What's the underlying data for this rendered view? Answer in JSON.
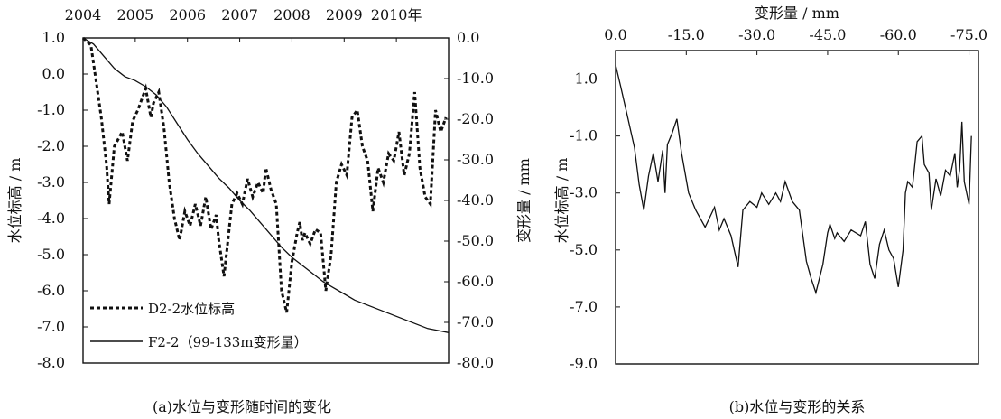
{
  "chart_data": [
    {
      "id": "a",
      "type": "line",
      "caption": "(a)水位与变形随时间的变化",
      "x_axis": {
        "ticks": [
          "2004",
          "2005",
          "2006",
          "2007",
          "2008",
          "2009",
          "2010年"
        ],
        "range": [
          2004,
          2011
        ]
      },
      "y_left": {
        "label": "水位标高 / m",
        "range": [
          -8.0,
          1.0
        ],
        "ticks": [
          "1.0",
          "0.0",
          "-1.0",
          "-2.0",
          "-3.0",
          "-4.0",
          "-5.0",
          "-6.0",
          "-7.0",
          "-8.0"
        ]
      },
      "y_right": {
        "label": "变形量 / mm",
        "range": [
          -80.0,
          0.0
        ],
        "ticks": [
          "0.0",
          "-10.0",
          "-20.0",
          "-30.0",
          "-40.0",
          "-50.0",
          "-60.0",
          "-70.0",
          "-80.0"
        ]
      },
      "series": [
        {
          "name": "D2-2水位标高",
          "axis": "left",
          "style": "dashed",
          "x": [
            2004.0,
            2004.15,
            2004.25,
            2004.35,
            2004.45,
            2004.5,
            2004.6,
            2004.75,
            2004.85,
            2004.95,
            2005.05,
            2005.2,
            2005.3,
            2005.35,
            2005.45,
            2005.55,
            2005.65,
            2005.75,
            2005.85,
            2005.95,
            2006.05,
            2006.15,
            2006.25,
            2006.35,
            2006.45,
            2006.55,
            2006.6,
            2006.7,
            2006.85,
            2006.95,
            2007.05,
            2007.15,
            2007.25,
            2007.35,
            2007.45,
            2007.5,
            2007.6,
            2007.7,
            2007.8,
            2007.9,
            2008.0,
            2008.1,
            2008.15,
            2008.2,
            2008.25,
            2008.35,
            2008.45,
            2008.55,
            2008.65,
            2008.75,
            2008.85,
            2008.95,
            2009.05,
            2009.15,
            2009.25,
            2009.35,
            2009.45,
            2009.55,
            2009.65,
            2009.75,
            2009.85,
            2009.95,
            2010.05,
            2010.15,
            2010.25,
            2010.35,
            2010.45,
            2010.55,
            2010.65,
            2010.75,
            2010.85,
            2010.95
          ],
          "values": [
            1.0,
            0.8,
            -0.2,
            -1.2,
            -2.5,
            -3.6,
            -2.0,
            -1.6,
            -2.4,
            -1.3,
            -1.0,
            -0.4,
            -1.2,
            -0.8,
            -0.5,
            -1.5,
            -3.0,
            -4.0,
            -4.6,
            -3.8,
            -4.2,
            -3.6,
            -4.2,
            -3.4,
            -4.3,
            -3.9,
            -4.6,
            -5.6,
            -3.6,
            -3.3,
            -3.6,
            -2.9,
            -3.4,
            -3.0,
            -3.3,
            -2.6,
            -3.2,
            -3.6,
            -6.0,
            -6.6,
            -5.2,
            -4.4,
            -4.1,
            -4.6,
            -4.4,
            -4.7,
            -4.3,
            -4.4,
            -6.0,
            -5.0,
            -3.0,
            -2.5,
            -2.8,
            -1.2,
            -1.0,
            -2.0,
            -2.4,
            -3.8,
            -2.6,
            -3.0,
            -2.2,
            -2.4,
            -1.6,
            -2.8,
            -2.2,
            -0.5,
            -2.6,
            -3.4,
            -3.6,
            -1.0,
            -1.6,
            -1.2
          ]
        },
        {
          "name": "F2-2（99-133m变形量）",
          "axis": "right",
          "style": "solid",
          "x": [
            2004.0,
            2004.2,
            2004.4,
            2004.6,
            2004.8,
            2005.0,
            2005.2,
            2005.4,
            2005.6,
            2005.8,
            2006.0,
            2006.2,
            2006.4,
            2006.6,
            2006.8,
            2007.0,
            2007.2,
            2007.4,
            2007.6,
            2007.8,
            2008.0,
            2008.2,
            2008.4,
            2008.6,
            2008.8,
            2009.0,
            2009.2,
            2009.4,
            2009.6,
            2009.8,
            2010.0,
            2010.2,
            2010.4,
            2010.6,
            2010.8,
            2011.0
          ],
          "values": [
            0.0,
            -1.5,
            -4.5,
            -7.5,
            -9.5,
            -10.5,
            -12.0,
            -14.0,
            -17.0,
            -21.0,
            -25.0,
            -28.5,
            -31.5,
            -34.5,
            -37.0,
            -40.0,
            -42.5,
            -45.5,
            -48.5,
            -51.5,
            -54.0,
            -56.0,
            -58.0,
            -60.0,
            -61.5,
            -63.0,
            -64.5,
            -65.5,
            -66.5,
            -67.5,
            -68.5,
            -69.5,
            -70.5,
            -71.5,
            -72.0,
            -72.5
          ]
        }
      ]
    },
    {
      "id": "b",
      "type": "line",
      "caption": "(b)水位与变形的关系",
      "x_axis": {
        "label": "变形量 / mm",
        "range": [
          0.0,
          -77.0
        ],
        "ticks": [
          "0.0",
          "-15.0",
          "-30.0",
          "-45.0",
          "-60.0",
          "-75.0"
        ]
      },
      "y_axis": {
        "label": "水位标高 / m",
        "range": [
          -9.0,
          2.0
        ],
        "ticks": [
          "1.0",
          "-1.0",
          "-3.0",
          "-5.0",
          "-7.0",
          "-9.0"
        ]
      },
      "series": [
        {
          "name": "",
          "style": "solid",
          "x": [
            0.0,
            -1.0,
            -2.5,
            -4.0,
            -5.0,
            -6.0,
            -7.0,
            -8.0,
            -9.0,
            -10.0,
            -10.5,
            -11.0,
            -12.0,
            -13.0,
            -14.0,
            -15.5,
            -17.0,
            -19.0,
            -21.0,
            -22.0,
            -23.0,
            -24.5,
            -26.0,
            -27.0,
            -28.5,
            -30.0,
            -31.0,
            -32.5,
            -34.0,
            -35.0,
            -36.0,
            -37.5,
            -39.0,
            -40.5,
            -41.5,
            -42.5,
            -44.0,
            -45.0,
            -45.5,
            -46.5,
            -47.0,
            -48.5,
            -50.0,
            -52.0,
            -53.0,
            -54.0,
            -55.0,
            -56.0,
            -57.0,
            -58.0,
            -59.0,
            -60.0,
            -61.0,
            -61.5,
            -62.0,
            -63.0,
            -64.0,
            -65.0,
            -65.5,
            -66.5,
            -67.0,
            -68.0,
            -69.0,
            -70.0,
            -71.0,
            -72.0,
            -72.5,
            -73.0,
            -73.5,
            -74.0,
            -75.0,
            -75.5
          ],
          "values": [
            1.5,
            0.8,
            -0.3,
            -1.4,
            -2.7,
            -3.6,
            -2.4,
            -1.6,
            -2.6,
            -1.5,
            -3.0,
            -1.3,
            -0.9,
            -0.4,
            -1.6,
            -3.0,
            -3.6,
            -4.2,
            -3.5,
            -4.3,
            -3.9,
            -4.5,
            -5.6,
            -3.6,
            -3.3,
            -3.5,
            -3.0,
            -3.4,
            -3.0,
            -3.3,
            -2.6,
            -3.3,
            -3.6,
            -5.4,
            -6.0,
            -6.5,
            -5.5,
            -4.4,
            -4.1,
            -4.6,
            -4.4,
            -4.7,
            -4.3,
            -4.5,
            -4.0,
            -5.5,
            -6.0,
            -4.8,
            -4.3,
            -5.0,
            -5.3,
            -6.3,
            -5.0,
            -3.0,
            -2.6,
            -2.8,
            -1.2,
            -1.0,
            -2.0,
            -2.3,
            -3.6,
            -2.5,
            -3.1,
            -2.2,
            -2.4,
            -1.6,
            -2.8,
            -2.2,
            -0.5,
            -2.6,
            -3.4,
            -1.0
          ]
        }
      ]
    }
  ],
  "legend_a": [
    {
      "label": "D2-2水位标高",
      "style": "dashed"
    },
    {
      "label": "F2-2（99-133m变形量）",
      "style": "solid"
    }
  ]
}
